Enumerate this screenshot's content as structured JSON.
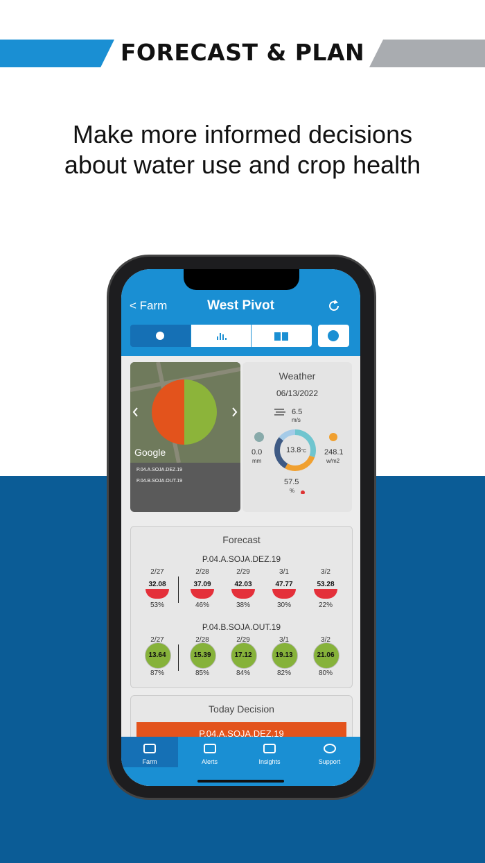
{
  "banner": {
    "title": "FORECAST & PLAN"
  },
  "headline": [
    "Make more informed decisions",
    "about water use and crop health"
  ],
  "app": {
    "header": {
      "back": "Farm",
      "title": "West Pivot"
    },
    "map": {
      "logo": "Google",
      "labels": [
        "P.04.A.SOJA.DEZ.19",
        "P.04.B.SOJA.OUT.19"
      ]
    },
    "weather": {
      "title": "Weather",
      "date": "06/13/2022",
      "wind": "6.5",
      "wind_unit": "m/s",
      "rain": "0.0",
      "rain_unit": "mm",
      "temp": "13.8",
      "temp_unit": "°C",
      "radiation": "248.1",
      "radiation_unit": "w/m2",
      "humidity": "57.5",
      "humidity_unit": "%"
    },
    "forecast": {
      "title": "Forecast",
      "groups": [
        {
          "name": "P.04.A.SOJA.DEZ.19",
          "days": [
            {
              "date": "2/27",
              "value": "32.08",
              "percent": "53%"
            },
            {
              "date": "2/28",
              "value": "37.09",
              "percent": "46%"
            },
            {
              "date": "2/29",
              "value": "42.03",
              "percent": "38%"
            },
            {
              "date": "3/1",
              "value": "47.77",
              "percent": "30%"
            },
            {
              "date": "3/2",
              "value": "53.28",
              "percent": "22%"
            }
          ]
        },
        {
          "name": "P.04.B.SOJA.OUT.19",
          "days": [
            {
              "date": "2/27",
              "value": "13.64",
              "percent": "87%"
            },
            {
              "date": "2/28",
              "value": "15.39",
              "percent": "85%"
            },
            {
              "date": "2/29",
              "value": "17.12",
              "percent": "84%"
            },
            {
              "date": "3/1",
              "value": "19.13",
              "percent": "82%"
            },
            {
              "date": "3/2",
              "value": "21.06",
              "percent": "80%"
            }
          ]
        }
      ]
    },
    "decision": {
      "title": "Today Decision",
      "item": "P.04.A.SOJA.DEZ.19"
    },
    "nav": [
      "Farm",
      "Alerts",
      "Insights",
      "Support"
    ]
  }
}
